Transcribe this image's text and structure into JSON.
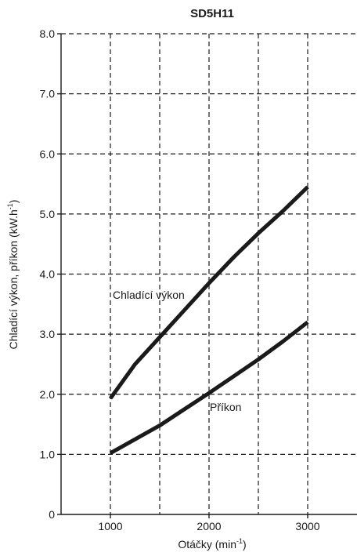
{
  "chart_data": {
    "type": "line",
    "title": "SD5H11",
    "xlabel": {
      "text": "Otáčky (min",
      "sup": "-1",
      "suffix": ")"
    },
    "ylabel": {
      "text": "Chladící výkon, příkon (kW.h",
      "sup": "-1",
      "suffix": ")"
    },
    "xlim": [
      500,
      3500
    ],
    "ylim": [
      0,
      8
    ],
    "x_ticks": [
      1000,
      2000,
      3000
    ],
    "x_tick_labels": [
      "1000",
      "2000",
      "3000"
    ],
    "x_grid": [
      1000,
      1500,
      2000,
      2500,
      3000
    ],
    "y_ticks": [
      0,
      1,
      2,
      3,
      4,
      5,
      6,
      7,
      8
    ],
    "y_tick_labels": [
      "0",
      "1.0",
      "2.0",
      "3.0",
      "4.0",
      "5.0",
      "6.0",
      "7.0",
      "8.0"
    ],
    "grid": true,
    "series": [
      {
        "name": "Chladící výkon",
        "x": [
          1000,
          1250,
          1500,
          1750,
          2000,
          2250,
          2500,
          2750,
          3000
        ],
        "y": [
          1.93,
          2.5,
          2.95,
          3.4,
          3.85,
          4.28,
          4.68,
          5.05,
          5.45
        ]
      },
      {
        "name": "Příkon",
        "x": [
          1000,
          1250,
          1500,
          1750,
          2000,
          2250,
          2500,
          2750,
          3000
        ],
        "y": [
          1.02,
          1.25,
          1.48,
          1.75,
          2.02,
          2.3,
          2.58,
          2.88,
          3.2
        ]
      }
    ],
    "colors": {
      "line": "#1a1a1a",
      "grid": "#1a1a1a",
      "background": "#ffffff"
    }
  }
}
